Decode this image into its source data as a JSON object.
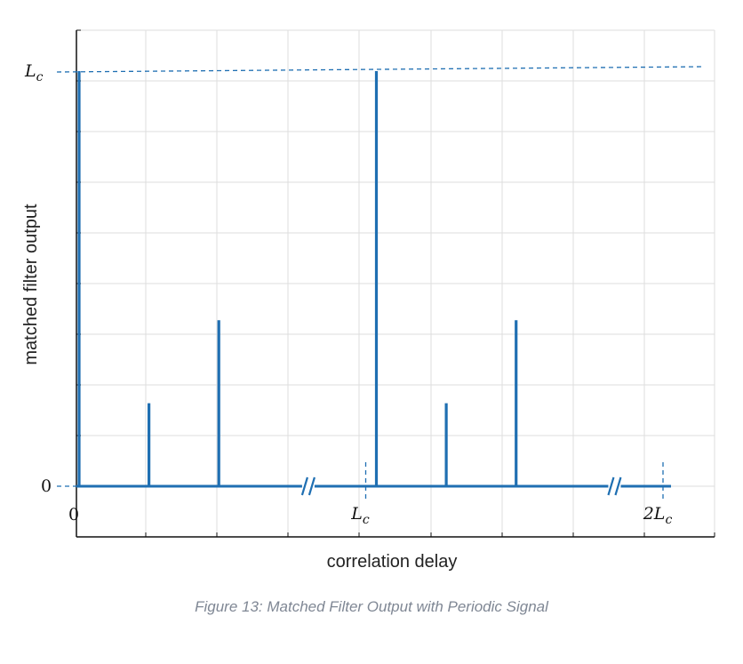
{
  "chart_data": {
    "type": "stem",
    "xlabel": "correlation delay",
    "ylabel": "matched filter output",
    "x_ticks": [
      {
        "value": 0,
        "label": "0"
      },
      {
        "value": 1,
        "label_main": "L",
        "label_sub": "c"
      },
      {
        "value": 2,
        "label_main": "2L",
        "label_sub": "c"
      }
    ],
    "y_ticks": [
      {
        "value": 0,
        "label": "0"
      },
      {
        "value": 1,
        "label_main": "L",
        "label_sub": "c"
      }
    ],
    "xlim": [
      0,
      2.15
    ],
    "ylim": [
      -0.12,
      1.1
    ],
    "stems": [
      {
        "x": 0.0,
        "y": 1.0
      },
      {
        "x": 0.235,
        "y": 0.2
      },
      {
        "x": 0.47,
        "y": 0.4
      },
      {
        "x": 1.0,
        "y": 1.0
      },
      {
        "x": 1.235,
        "y": 0.2
      },
      {
        "x": 1.47,
        "y": 0.4
      }
    ],
    "axis_breaks": [
      0.78,
      1.81
    ],
    "baseline_end": 2.0,
    "grid": true,
    "color": "#1f6fb2"
  },
  "caption": "Figure 13: Matched Filter Output with Periodic Signal"
}
